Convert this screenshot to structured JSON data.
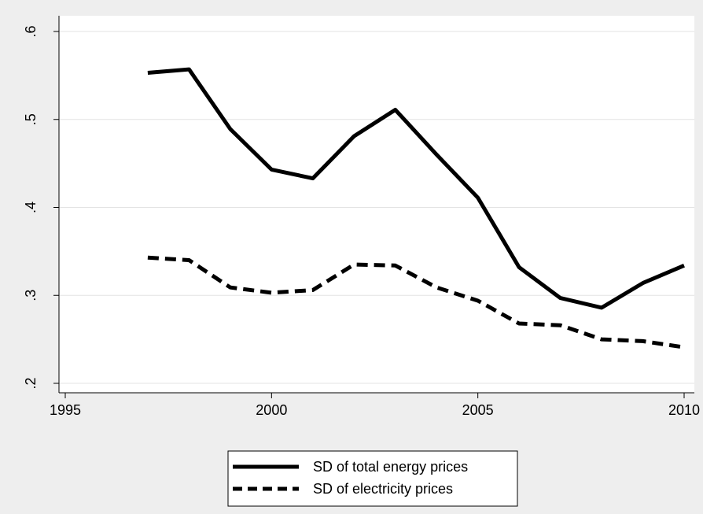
{
  "chart_data": {
    "type": "line",
    "x_ticks": [
      1995,
      2000,
      2005,
      2010
    ],
    "y_ticks": [
      0.2,
      0.3,
      0.4,
      0.5,
      0.6
    ],
    "y_tick_labels": [
      ".2",
      ".3",
      ".4",
      ".5",
      ".6"
    ],
    "xlim": [
      1995,
      2010
    ],
    "ylim": [
      0.2,
      0.6
    ],
    "grid": true,
    "legend_position": "bottom",
    "series": [
      {
        "name": "SD of total energy prices",
        "style": "solid",
        "color": "#000000",
        "x": [
          1997,
          1998,
          1999,
          2000,
          2001,
          2002,
          2003,
          2004,
          2005,
          2006,
          2007,
          2008,
          2009,
          2010
        ],
        "y": [
          0.553,
          0.557,
          0.489,
          0.443,
          0.433,
          0.481,
          0.511,
          0.46,
          0.411,
          0.332,
          0.297,
          0.286,
          0.314,
          0.334
        ]
      },
      {
        "name": "SD of electricity prices",
        "style": "dashed",
        "color": "#000000",
        "x": [
          1997,
          1998,
          1999,
          2000,
          2001,
          2002,
          2003,
          2004,
          2005,
          2006,
          2007,
          2008,
          2009,
          2010
        ],
        "y": [
          0.343,
          0.34,
          0.309,
          0.303,
          0.306,
          0.335,
          0.334,
          0.309,
          0.294,
          0.268,
          0.266,
          0.25,
          0.248,
          0.241
        ]
      }
    ]
  },
  "colors": {
    "outer_background": "#eeeeee",
    "plot_background": "#ffffff",
    "gridline": "#e3e3e3",
    "axis": "#000000"
  }
}
